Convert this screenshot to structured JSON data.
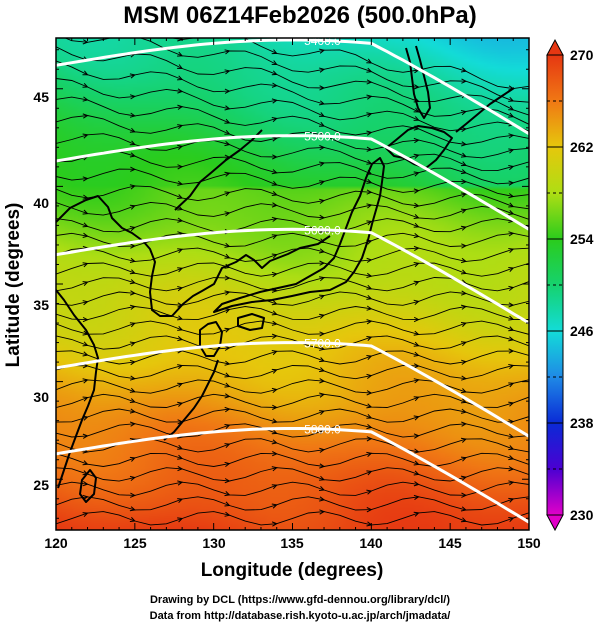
{
  "title": "MSM 06Z14Feb2026 (500.0hPa)",
  "x_axis": {
    "label": "Longitude (degrees)",
    "range": [
      120,
      150
    ],
    "ticks": [
      "120",
      "125",
      "130",
      "135",
      "140",
      "145",
      "150"
    ]
  },
  "y_axis": {
    "label": "Latitude  (degrees)",
    "range": [
      22.4,
      47.6
    ],
    "ticks": [
      "25",
      "30",
      "35",
      "40",
      "45"
    ]
  },
  "colorbar": {
    "range": [
      230,
      270
    ],
    "ticks": [
      "230",
      "238",
      "246",
      "254",
      "262",
      "270"
    ],
    "colors": [
      "#e100c8",
      "#4b00d2",
      "#0a2ad6",
      "#1f8ae6",
      "#13dcd8",
      "#16d26e",
      "#2bcc1c",
      "#aede14",
      "#e6c70c",
      "#f07814",
      "#e63712"
    ],
    "extends": "both"
  },
  "contours": [
    {
      "label": "5400.0",
      "lat": 46.2
    },
    {
      "label": "5500.0",
      "lat": 41.3
    },
    {
      "label": "5600.0",
      "lat": 36.5
    },
    {
      "label": "5700.0",
      "lat": 30.7
    },
    {
      "label": "5800.0",
      "lat": 26.3
    }
  ],
  "credits": {
    "line1": "Drawing by DCL (https://www.gfd-dennou.org/library/dcl/)",
    "line2": "Data from http://database.rish.kyoto-u.ac.jp/arch/jmadata/"
  }
}
